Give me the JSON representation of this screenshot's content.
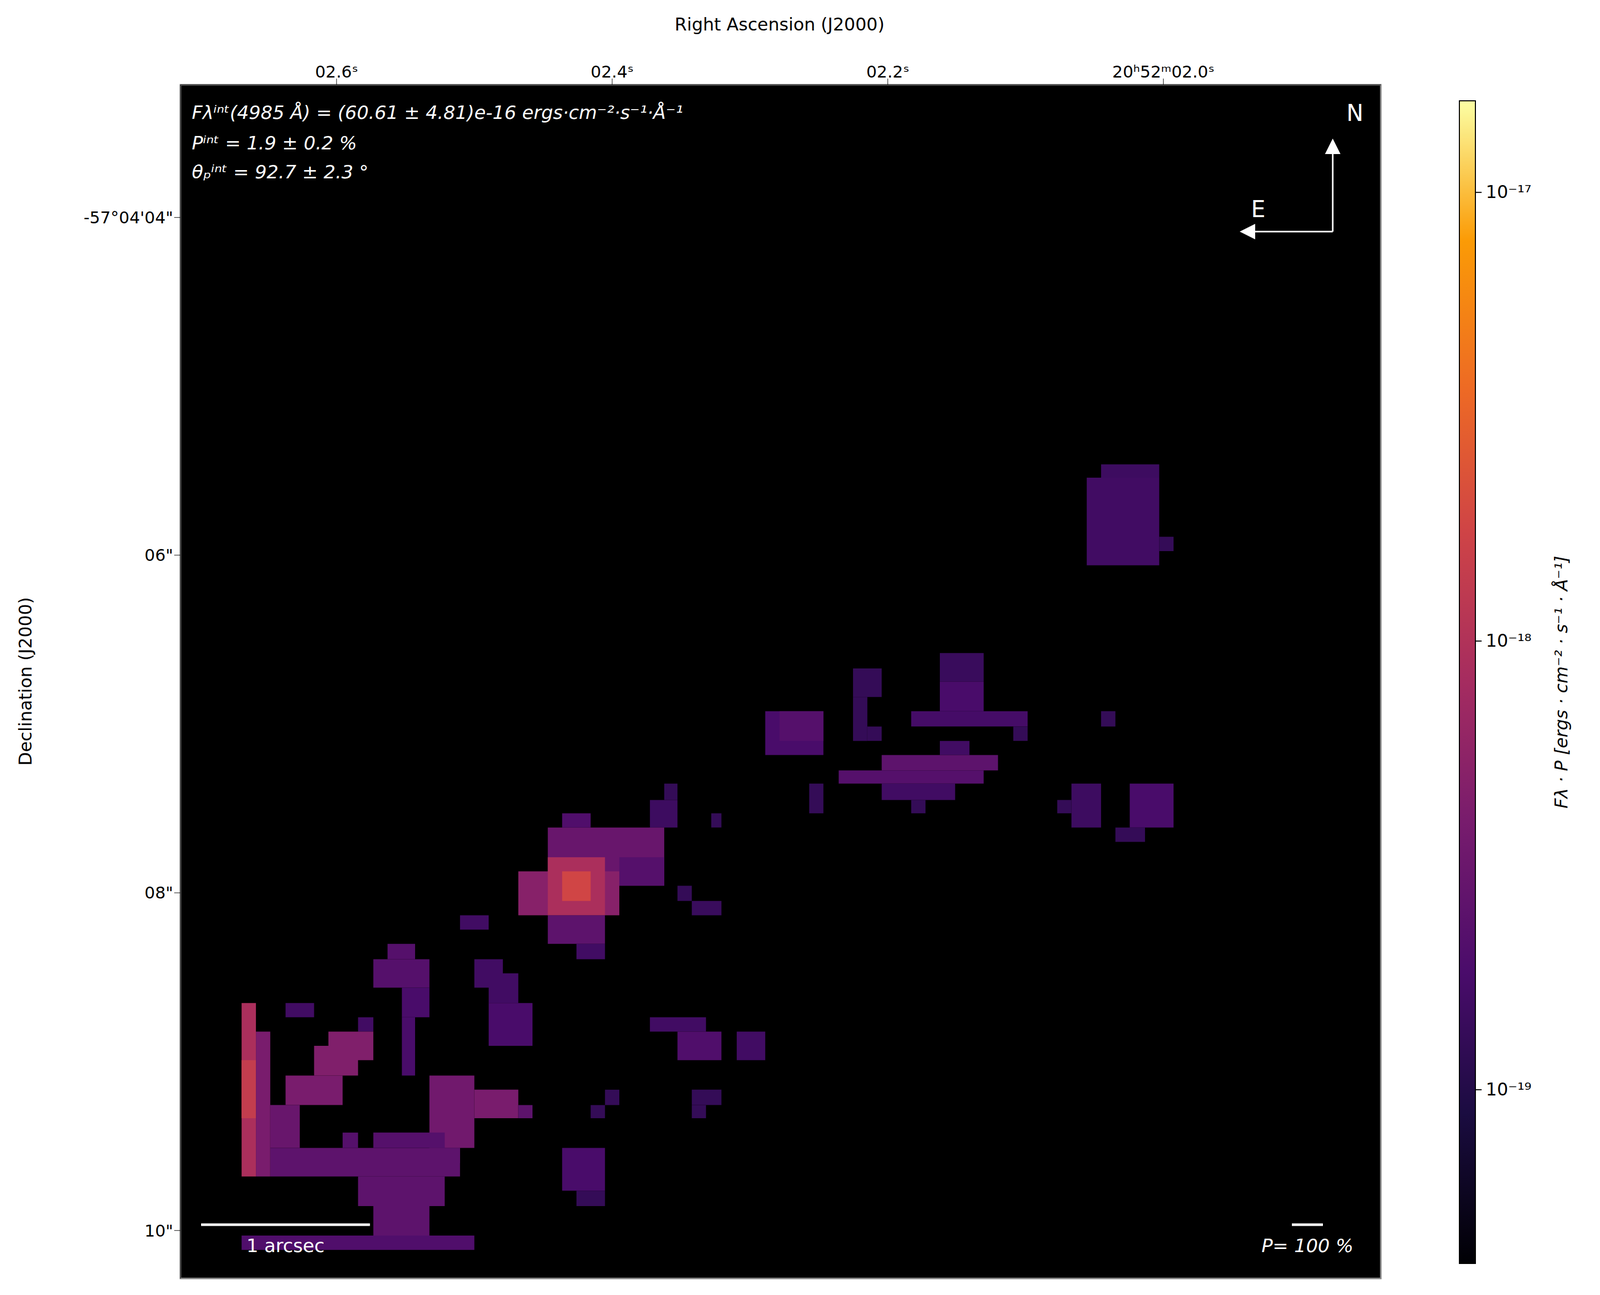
{
  "chart_data": {
    "type": "heatmap",
    "x_label": "Right Ascension (J2000)",
    "y_label": "Declination (J2000)",
    "xlim": [
      1.8422,
      2.7133
    ],
    "ylim": [
      3.214,
      10.284
    ],
    "xticks": [
      {
        "value": 2.6,
        "label": "02.6ˢ"
      },
      {
        "value": 2.4,
        "label": "02.4ˢ"
      },
      {
        "value": 2.2,
        "label": "02.2ˢ"
      },
      {
        "value": 2.0,
        "label": "20ʰ52ᵐ02.0ˢ"
      }
    ],
    "yticks": [
      {
        "value": 4,
        "label": "-57°04'04\""
      },
      {
        "value": 6,
        "label": "06\""
      },
      {
        "value": 8,
        "label": "08\""
      },
      {
        "value": 10,
        "label": "10\""
      }
    ],
    "grid": false,
    "annotations": [
      "Fλⁱⁿᵗ(4985 Å) = (60.61 ± 4.81)e-16 ergs·cm⁻²·s⁻¹·Å⁻¹",
      "Pⁱⁿᵗ = 1.9 ± 0.2 %",
      "θₚⁱⁿᵗ = 92.7 ± 2.3 °"
    ],
    "compass": {
      "north": "N",
      "east": "E"
    },
    "scale_bar": {
      "label": "1 arcsec",
      "length": 1
    },
    "vector_scale": {
      "label": "P= 100 %"
    },
    "colorbar": {
      "label": "Fλ · P [ergs · cm⁻² · s⁻¹ · Å⁻¹]",
      "range": [
        4.1e-20,
        1.6e-17
      ],
      "log": true,
      "color": "inferno",
      "ticks": [
        {
          "value": 1e-19,
          "label": "10⁻¹⁹"
        },
        {
          "value": 1e-18,
          "label": "10⁻¹⁸"
        },
        {
          "value": 1e-17,
          "label": "10⁻¹⁷"
        }
      ]
    },
    "cells": [
      {
        "ra": [
          2.0556,
          2.003
        ],
        "dec": [
          5.541,
          6.06
        ],
        "value": 1.6e-19
      },
      {
        "ra": [
          2.0452,
          2.003
        ],
        "dec": [
          5.462,
          5.541
        ],
        "value": 1.5e-19
      },
      {
        "ra": [
          2.003,
          1.9926
        ],
        "dec": [
          5.891,
          5.976
        ],
        "value": 1.3e-19
      },
      {
        "ra": [
          2.1622,
          2.1304
        ],
        "dec": [
          6.58,
          6.749
        ],
        "value": 1.4e-19
      },
      {
        "ra": [
          2.1622,
          2.1304
        ],
        "dec": [
          6.749,
          6.924
        ],
        "value": 1.8e-19
      },
      {
        "ra": [
          2.183,
          2.0985
        ],
        "dec": [
          6.924,
          7.015
        ],
        "value": 1.7e-19
      },
      {
        "ra": [
          2.1089,
          2.0985
        ],
        "dec": [
          7.015,
          7.1
        ],
        "value": 1.3e-19
      },
      {
        "ra": [
          2.2252,
          2.2044
        ],
        "dec": [
          6.671,
          6.84
        ],
        "value": 1.3e-19
      },
      {
        "ra": [
          2.2252,
          2.2148
        ],
        "dec": [
          6.84,
          7.1
        ],
        "value": 1.3e-19
      },
      {
        "ra": [
          2.2148,
          2.2044
        ],
        "dec": [
          7.015,
          7.1
        ],
        "value": 1.3e-19
      },
      {
        "ra": [
          2.2889,
          2.2467
        ],
        "dec": [
          6.924,
          7.184
        ],
        "value": 1.8e-19
      },
      {
        "ra": [
          2.2785,
          2.2467
        ],
        "dec": [
          6.924,
          7.1
        ],
        "value": 2.2e-19
      },
      {
        "ra": [
          2.1622,
          2.1407
        ],
        "dec": [
          7.1,
          7.184
        ],
        "value": 1.6e-19
      },
      {
        "ra": [
          2.2044,
          2.12
        ],
        "dec": [
          7.184,
          7.275
        ],
        "value": 2.5e-19
      },
      {
        "ra": [
          2.2356,
          2.1304
        ],
        "dec": [
          7.275,
          7.353
        ],
        "value": 2.2e-19
      },
      {
        "ra": [
          2.2044,
          2.1511
        ],
        "dec": [
          7.353,
          7.45
        ],
        "value": 1.6e-19
      },
      {
        "ra": [
          2.183,
          2.1726
        ],
        "dec": [
          7.45,
          7.529
        ],
        "value": 1.3e-19
      },
      {
        "ra": [
          2.257,
          2.2467
        ],
        "dec": [
          7.353,
          7.529
        ],
        "value": 1.3e-19
      },
      {
        "ra": [
          2.0452,
          2.0348
        ],
        "dec": [
          6.924,
          7.015
        ],
        "value": 1.3e-19
      },
      {
        "ra": [
          2.0667,
          2.0452
        ],
        "dec": [
          7.353,
          7.613
        ],
        "value": 1.5e-19
      },
      {
        "ra": [
          2.077,
          2.0667
        ],
        "dec": [
          7.45,
          7.529
        ],
        "value": 1.3e-19
      },
      {
        "ra": [
          2.0244,
          1.9926
        ],
        "dec": [
          7.353,
          7.613
        ],
        "value": 1.8e-19
      },
      {
        "ra": [
          2.0348,
          2.0133
        ],
        "dec": [
          7.613,
          7.698
        ],
        "value": 1.3e-19
      },
      {
        "ra": [
          2.3622,
          2.3526
        ],
        "dec": [
          7.353,
          7.45
        ],
        "value": 1.3e-19
      },
      {
        "ra": [
          2.3726,
          2.3526
        ],
        "dec": [
          7.45,
          7.613
        ],
        "value": 1.5e-19
      },
      {
        "ra": [
          2.3281,
          2.3207
        ],
        "dec": [
          7.529,
          7.613
        ],
        "value": 1.3e-19
      },
      {
        "ra": [
          2.4467,
          2.3622
        ],
        "dec": [
          7.613,
          7.958
        ],
        "value": 3e-19
      },
      {
        "ra": [
          2.4363,
          2.4156
        ],
        "dec": [
          7.529,
          7.613
        ],
        "value": 2e-19
      },
      {
        "ra": [
          2.3948,
          2.3622
        ],
        "dec": [
          7.789,
          7.958
        ],
        "value": 2.2e-19
      },
      {
        "ra": [
          2.4681,
          2.3948
        ],
        "dec": [
          7.873,
          8.133
        ],
        "value": 5e-19
      },
      {
        "ra": [
          2.4467,
          2.4052
        ],
        "dec": [
          7.789,
          8.133
        ],
        "value": 9e-19
      },
      {
        "ra": [
          2.4363,
          2.4156
        ],
        "dec": [
          7.873,
          8.048
        ],
        "value": 1.8e-18
      },
      {
        "ra": [
          2.4467,
          2.4052
        ],
        "dec": [
          8.133,
          8.302
        ],
        "value": 2.5e-19
      },
      {
        "ra": [
          2.4259,
          2.4052
        ],
        "dec": [
          8.302,
          8.393
        ],
        "value": 1.6e-19
      },
      {
        "ra": [
          2.3526,
          2.3422
        ],
        "dec": [
          7.958,
          8.048
        ],
        "value": 1.3e-19
      },
      {
        "ra": [
          2.3422,
          2.3207
        ],
        "dec": [
          8.048,
          8.133
        ],
        "value": 1.4e-19
      },
      {
        "ra": [
          2.5104,
          2.4896
        ],
        "dec": [
          8.133,
          8.218
        ],
        "value": 1.6e-19
      },
      {
        "ra": [
          2.5,
          2.4793
        ],
        "dec": [
          8.393,
          8.562
        ],
        "value": 1.6e-19
      },
      {
        "ra": [
          2.4896,
          2.4681
        ],
        "dec": [
          8.477,
          8.653
        ],
        "value": 1.6e-19
      },
      {
        "ra": [
          2.4896,
          2.4578
        ],
        "dec": [
          8.653,
          8.906
        ],
        "value": 1.8e-19
      },
      {
        "ra": [
          2.5733,
          2.5326
        ],
        "dec": [
          8.393,
          8.562
        ],
        "value": 2.2e-19
      },
      {
        "ra": [
          2.563,
          2.543
        ],
        "dec": [
          8.302,
          8.393
        ],
        "value": 2.2e-19
      },
      {
        "ra": [
          2.5526,
          2.5326
        ],
        "dec": [
          8.562,
          8.737
        ],
        "value": 1.8e-19
      },
      {
        "ra": [
          2.5526,
          2.543
        ],
        "dec": [
          8.737,
          9.082
        ],
        "value": 1.8e-19
      },
      {
        "ra": [
          2.637,
          2.6163
        ],
        "dec": [
          8.653,
          8.737
        ],
        "value": 1.6e-19
      },
      {
        "ra": [
          2.5844,
          2.5733
        ],
        "dec": [
          8.737,
          8.822
        ],
        "value": 1.6e-19
      },
      {
        "ra": [
          2.6059,
          2.5733
        ],
        "dec": [
          8.822,
          8.991
        ],
        "value": 4.5e-19
      },
      {
        "ra": [
          2.6163,
          2.5844
        ],
        "dec": [
          8.906,
          9.082
        ],
        "value": 4.5e-19
      },
      {
        "ra": [
          2.637,
          2.5956
        ],
        "dec": [
          9.082,
          9.257
        ],
        "value": 4e-19
      },
      {
        "ra": [
          2.6689,
          2.6585
        ],
        "dec": [
          8.653,
          9.68
        ],
        "value": 9e-19
      },
      {
        "ra": [
          2.6689,
          2.6585
        ],
        "dec": [
          8.991,
          9.335
        ],
        "value": 1.4e-18
      },
      {
        "ra": [
          2.6585,
          2.6481
        ],
        "dec": [
          8.822,
          9.68
        ],
        "value": 4e-19
      },
      {
        "ra": [
          2.6481,
          2.6267
        ],
        "dec": [
          9.257,
          9.511
        ],
        "value": 3e-19
      },
      {
        "ra": [
          2.3726,
          2.3319
        ],
        "dec": [
          8.737,
          8.822
        ],
        "value": 1.6e-19
      },
      {
        "ra": [
          2.3526,
          2.3207
        ],
        "dec": [
          8.822,
          8.991
        ],
        "value": 2e-19
      },
      {
        "ra": [
          2.3096,
          2.2889
        ],
        "dec": [
          8.822,
          8.991
        ],
        "value": 1.6e-19
      },
      {
        "ra": [
          2.4052,
          2.3948
        ],
        "dec": [
          9.166,
          9.257
        ],
        "value": 1.3e-19
      },
      {
        "ra": [
          2.4156,
          2.4052
        ],
        "dec": [
          9.257,
          9.335
        ],
        "value": 1.3e-19
      },
      {
        "ra": [
          2.3422,
          2.3207
        ],
        "dec": [
          9.166,
          9.257
        ],
        "value": 1.3e-19
      },
      {
        "ra": [
          2.3422,
          2.3319
        ],
        "dec": [
          9.257,
          9.335
        ],
        "value": 1.3e-19
      },
      {
        "ra": [
          2.5326,
          2.5
        ],
        "dec": [
          9.082,
          9.511
        ],
        "value": 3.5e-19
      },
      {
        "ra": [
          2.5,
          2.4681
        ],
        "dec": [
          9.166,
          9.335
        ],
        "value": 4e-19
      },
      {
        "ra": [
          2.4681,
          2.4578
        ],
        "dec": [
          9.257,
          9.335
        ],
        "value": 2.5e-19
      },
      {
        "ra": [
          2.5326,
          2.5104
        ],
        "dec": [
          9.511,
          9.601
        ],
        "value": 2.5e-19
      },
      {
        "ra": [
          2.6481,
          2.5104
        ],
        "dec": [
          9.511,
          9.68
        ],
        "value": 2.5e-19
      },
      {
        "ra": [
          2.5733,
          2.5215
        ],
        "dec": [
          9.42,
          9.511
        ],
        "value": 2.2e-19
      },
      {
        "ra": [
          2.5956,
          2.5844
        ],
        "dec": [
          9.42,
          9.511
        ],
        "value": 2.2e-19
      },
      {
        "ra": [
          2.5844,
          2.5215
        ],
        "dec": [
          9.68,
          9.855
        ],
        "value": 2.5e-19
      },
      {
        "ra": [
          2.5733,
          2.5326
        ],
        "dec": [
          9.855,
          10.03
        ],
        "value": 2.5e-19
      },
      {
        "ra": [
          2.6689,
          2.5
        ],
        "dec": [
          10.03,
          10.115
        ],
        "value": 2e-19
      },
      {
        "ra": [
          2.4363,
          2.4052
        ],
        "dec": [
          9.511,
          9.764
        ],
        "value": 1.8e-19
      },
      {
        "ra": [
          2.4259,
          2.4052
        ],
        "dec": [
          9.764,
          9.855
        ],
        "value": 1.3e-19
      }
    ]
  }
}
